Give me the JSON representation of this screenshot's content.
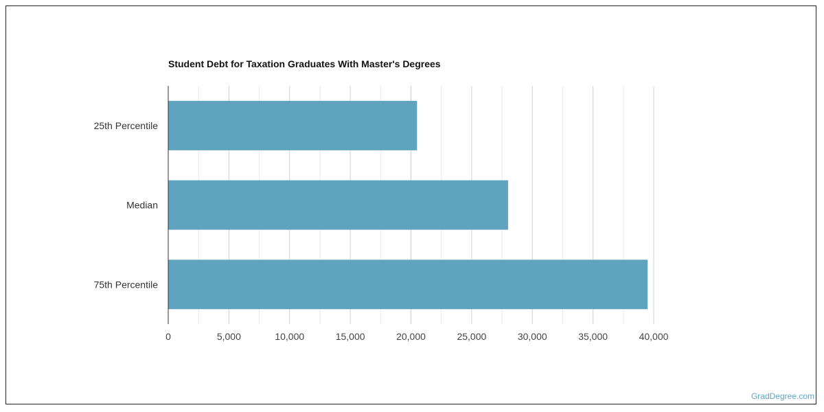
{
  "chart_data": {
    "type": "bar",
    "orientation": "horizontal",
    "title": "Student Debt for Taxation Graduates With Master's Degrees",
    "categories": [
      "25th Percentile",
      "Median",
      "75th Percentile"
    ],
    "values": [
      20500,
      28000,
      39500
    ],
    "xlim": [
      0,
      40000
    ],
    "x_ticks": [
      0,
      5000,
      10000,
      15000,
      20000,
      25000,
      30000,
      35000,
      40000
    ],
    "x_tick_labels": [
      "0",
      "5,000",
      "10,000",
      "15,000",
      "20,000",
      "25,000",
      "30,000",
      "35,000",
      "40,000"
    ],
    "grid": true,
    "bar_color": "#5fa3bf"
  },
  "watermark": "GradDegree.com"
}
